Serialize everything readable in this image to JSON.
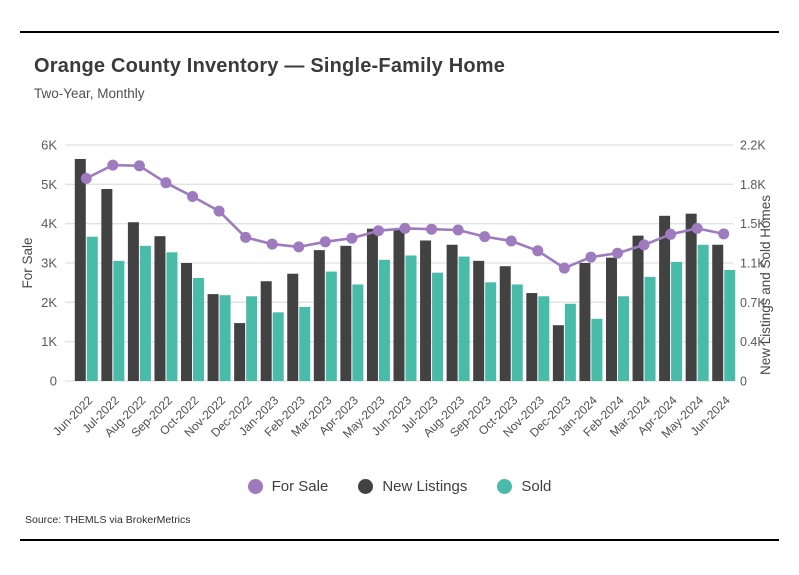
{
  "header": {
    "title": "Orange County Inventory — Single-Family Home",
    "subtitle": "Two-Year, Monthly"
  },
  "footer": {
    "source": "Source: THEMLS via BrokerMetrics"
  },
  "legend": [
    {
      "label": "For Sale",
      "color": "#9d7bbe"
    },
    {
      "label": "New Listings",
      "color": "#424242"
    },
    {
      "label": "Sold",
      "color": "#49bba9"
    }
  ],
  "colors": {
    "for_sale_line": "#9d7bbe",
    "new_listings_bar": "#424242",
    "sold_bar": "#49bba9",
    "gridline": "#e2e2e2",
    "tick_text": "#5a5a5a",
    "axis_title_text": "#4a4a4a"
  },
  "chart_data": {
    "type": "bar",
    "subtype": "grouped-bars-with-line-overlay-dual-y-axes",
    "title": "Orange County Inventory — Single-Family Home",
    "subtitle": "Two-Year, Monthly",
    "grid": "horizontal",
    "legend_position": "bottom-center",
    "categories": [
      "Jun-2022",
      "Jul-2022",
      "Aug-2022",
      "Sep-2022",
      "Oct-2022",
      "Nov-2022",
      "Dec-2022",
      "Jan-2023",
      "Feb-2023",
      "Mar-2023",
      "Apr-2023",
      "May-2023",
      "Jun-2023",
      "Jul-2023",
      "Aug-2023",
      "Sep-2023",
      "Oct-2023",
      "Nov-2023",
      "Dec-2023",
      "Jan-2024",
      "Feb-2024",
      "Mar-2024",
      "Apr-2024",
      "May-2024",
      "Jun-2024"
    ],
    "left_axis": {
      "label": "For Sale",
      "range": [
        0,
        6000
      ],
      "tick_labels": [
        "0",
        "1K",
        "2K",
        "3K",
        "4K",
        "5K",
        "6K"
      ]
    },
    "right_axis": {
      "label": "New Listings and Sold Homes",
      "range": [
        0,
        2200
      ],
      "tick_labels": [
        "0",
        "0.4K",
        "0.7K",
        "1.1K",
        "1.5K",
        "1.8K",
        "2.2K"
      ]
    },
    "series": [
      {
        "name": "For Sale",
        "mark": "line",
        "axis": "left",
        "values": [
          5150,
          5490,
          5470,
          5040,
          4690,
          4320,
          3650,
          3480,
          3410,
          3540,
          3630,
          3820,
          3880,
          3860,
          3840,
          3670,
          3560,
          3310,
          2870,
          3150,
          3250,
          3460,
          3730,
          3880,
          3740
        ]
      },
      {
        "name": "New Listings",
        "mark": "bar",
        "axis": "right",
        "values": [
          2070,
          1790,
          1480,
          1350,
          1100,
          810,
          540,
          930,
          1000,
          1220,
          1260,
          1420,
          1410,
          1310,
          1270,
          1120,
          1070,
          820,
          520,
          1100,
          1150,
          1355,
          1540,
          1560,
          1270
        ]
      },
      {
        "name": "Sold",
        "mark": "bar",
        "axis": "right",
        "values": [
          1345,
          1120,
          1260,
          1200,
          960,
          800,
          790,
          640,
          690,
          1020,
          900,
          1130,
          1170,
          1010,
          1160,
          920,
          900,
          790,
          720,
          580,
          790,
          970,
          1110,
          1270,
          1035
        ]
      }
    ]
  }
}
